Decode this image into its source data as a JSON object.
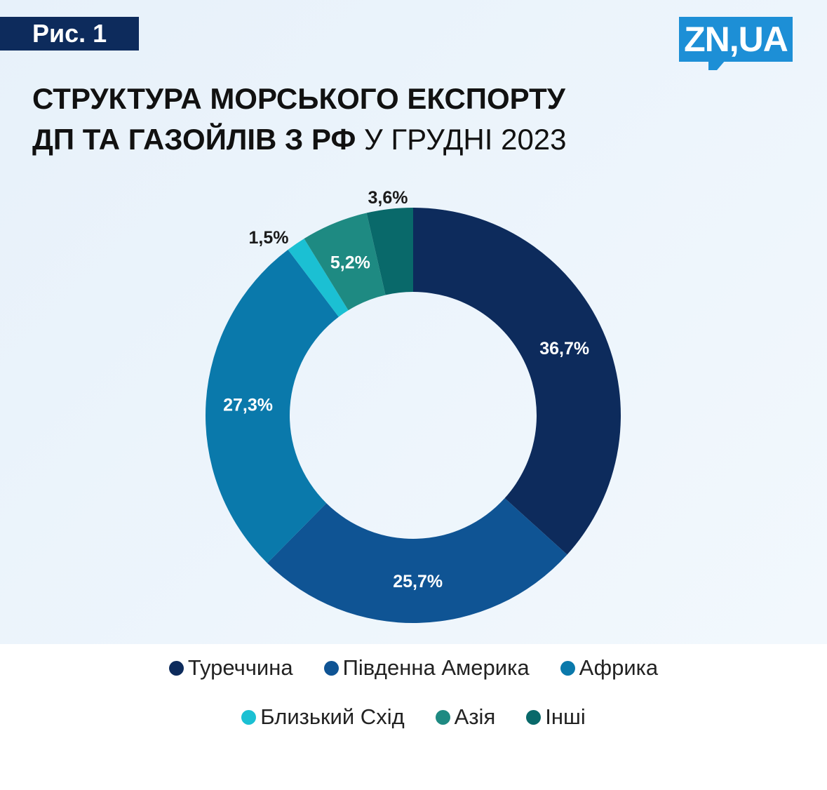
{
  "figure_label": "Рис. 1",
  "logo_text": "ZN,UA",
  "title": {
    "line1": "СТРУКТУРА МОРСЬКОГО ЕКСПОРТУ",
    "line2_bold": "ДП ТА ГАЗОЙЛІВ З РФ",
    "line2_regular": " У ГРУДНІ 2023"
  },
  "chart_data": {
    "type": "pie",
    "donut": true,
    "title": "СТРУКТУРА МОРСЬКОГО ЕКСПОРТУ ДП ТА ГАЗОЙЛІВ З РФ У ГРУДНІ 2023",
    "slices": [
      {
        "name": "Туреччина",
        "value": 36.7,
        "label": "36,7%",
        "color": "#0d2b5c"
      },
      {
        "name": "Південна Америка",
        "value": 25.7,
        "label": "25,7%",
        "color": "#0f5494"
      },
      {
        "name": "Африка",
        "value": 27.3,
        "label": "27,3%",
        "color": "#0a79ab"
      },
      {
        "name": "Близький Схід",
        "value": 1.5,
        "label": "1,5%",
        "color": "#1bc0d3"
      },
      {
        "name": "Азія",
        "value": 5.2,
        "label": "5,2%",
        "color": "#1e8a82"
      },
      {
        "name": "Інші",
        "value": 3.6,
        "label": "3,6%",
        "color": "#09696a"
      }
    ],
    "legend_position": "bottom"
  }
}
